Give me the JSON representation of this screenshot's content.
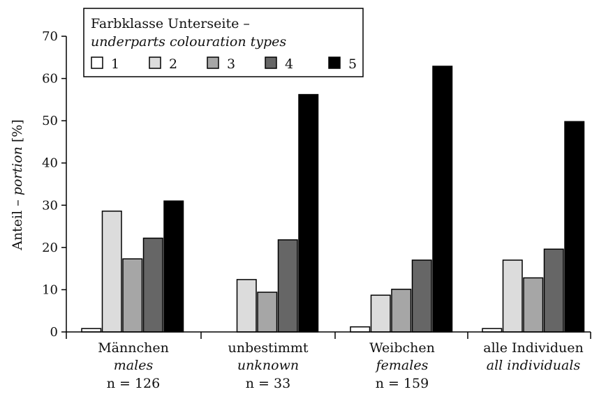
{
  "chart_data": {
    "type": "bar",
    "ylabel": {
      "main": "Anteil – ",
      "italic": "portion",
      "unit": " [%]"
    },
    "ylim": [
      0,
      70
    ],
    "yticks": [
      0,
      10,
      20,
      30,
      40,
      50,
      60,
      70
    ],
    "grid": false,
    "legend": {
      "position": "top-left",
      "title_line1": "Farbklasse Unterseite –",
      "title_line2": "underparts colouration types"
    },
    "categories": [
      {
        "label": "Männchen",
        "label_en": "males",
        "n": "n = 126"
      },
      {
        "label": "unbestimmt",
        "label_en": "unknown",
        "n": "n = 33"
      },
      {
        "label": "Weibchen",
        "label_en": "females",
        "n": "n = 159"
      },
      {
        "label": "alle Individuen",
        "label_en": "all individuals",
        "n": ""
      }
    ],
    "series": [
      {
        "name": "1",
        "color": "#ffffff",
        "values": [
          0.8,
          0,
          1.2,
          0.8
        ]
      },
      {
        "name": "2",
        "color": "#dcdcdc",
        "values": [
          28.6,
          12.4,
          8.7,
          17.0
        ]
      },
      {
        "name": "3",
        "color": "#a6a6a6",
        "values": [
          17.3,
          9.4,
          10.1,
          12.8
        ]
      },
      {
        "name": "4",
        "color": "#666666",
        "values": [
          22.2,
          21.8,
          17.0,
          19.6
        ]
      },
      {
        "name": "5",
        "color": "#000000",
        "values": [
          31.0,
          56.2,
          62.9,
          49.8
        ]
      }
    ]
  }
}
